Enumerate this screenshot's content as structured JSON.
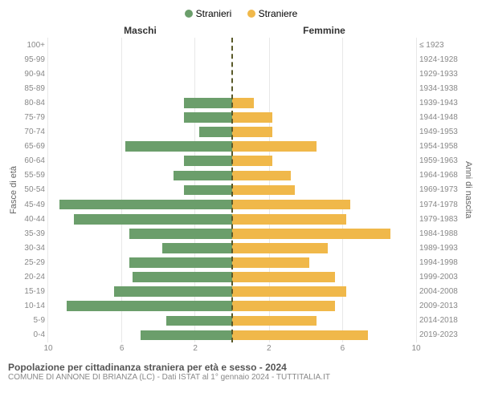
{
  "legend": {
    "male": "Stranieri",
    "female": "Straniere"
  },
  "headers": {
    "maschi": "Maschi",
    "femmine": "Femmine"
  },
  "yaxis_left_label": "Fasce di età",
  "yaxis_right_label": "Anni di nascita",
  "colors": {
    "male": "#6b9e6b",
    "female": "#f0b84a",
    "grid": "#e8e8e8",
    "center": "#5a5a2a"
  },
  "xmax": 10,
  "xticks": [
    10,
    6,
    2,
    2,
    6,
    10
  ],
  "rows": [
    {
      "age": "100+",
      "birth": "≤ 1923",
      "m": 0.0,
      "f": 0.0
    },
    {
      "age": "95-99",
      "birth": "1924-1928",
      "m": 0.0,
      "f": 0.0
    },
    {
      "age": "90-94",
      "birth": "1929-1933",
      "m": 0.0,
      "f": 0.0
    },
    {
      "age": "85-89",
      "birth": "1934-1938",
      "m": 0.0,
      "f": 0.0
    },
    {
      "age": "80-84",
      "birth": "1939-1943",
      "m": 2.6,
      "f": 1.2
    },
    {
      "age": "75-79",
      "birth": "1944-1948",
      "m": 2.6,
      "f": 2.2
    },
    {
      "age": "70-74",
      "birth": "1949-1953",
      "m": 1.8,
      "f": 2.2
    },
    {
      "age": "65-69",
      "birth": "1954-1958",
      "m": 5.8,
      "f": 4.6
    },
    {
      "age": "60-64",
      "birth": "1959-1963",
      "m": 2.6,
      "f": 2.2
    },
    {
      "age": "55-59",
      "birth": "1964-1968",
      "m": 3.2,
      "f": 3.2
    },
    {
      "age": "50-54",
      "birth": "1969-1973",
      "m": 2.6,
      "f": 3.4
    },
    {
      "age": "45-49",
      "birth": "1974-1978",
      "m": 9.4,
      "f": 6.4
    },
    {
      "age": "40-44",
      "birth": "1979-1983",
      "m": 8.6,
      "f": 6.2
    },
    {
      "age": "35-39",
      "birth": "1984-1988",
      "m": 5.6,
      "f": 8.6
    },
    {
      "age": "30-34",
      "birth": "1989-1993",
      "m": 3.8,
      "f": 5.2
    },
    {
      "age": "25-29",
      "birth": "1994-1998",
      "m": 5.6,
      "f": 4.2
    },
    {
      "age": "20-24",
      "birth": "1999-2003",
      "m": 5.4,
      "f": 5.6
    },
    {
      "age": "15-19",
      "birth": "2004-2008",
      "m": 6.4,
      "f": 6.2
    },
    {
      "age": "10-14",
      "birth": "2009-2013",
      "m": 9.0,
      "f": 5.6
    },
    {
      "age": "5-9",
      "birth": "2014-2018",
      "m": 3.6,
      "f": 4.6
    },
    {
      "age": "0-4",
      "birth": "2019-2023",
      "m": 5.0,
      "f": 7.4
    }
  ],
  "footer": {
    "title": "Popolazione per cittadinanza straniera per età e sesso - 2024",
    "subtitle": "COMUNE DI ANNONE DI BRIANZA (LC) - Dati ISTAT al 1° gennaio 2024 - TUTTITALIA.IT"
  }
}
